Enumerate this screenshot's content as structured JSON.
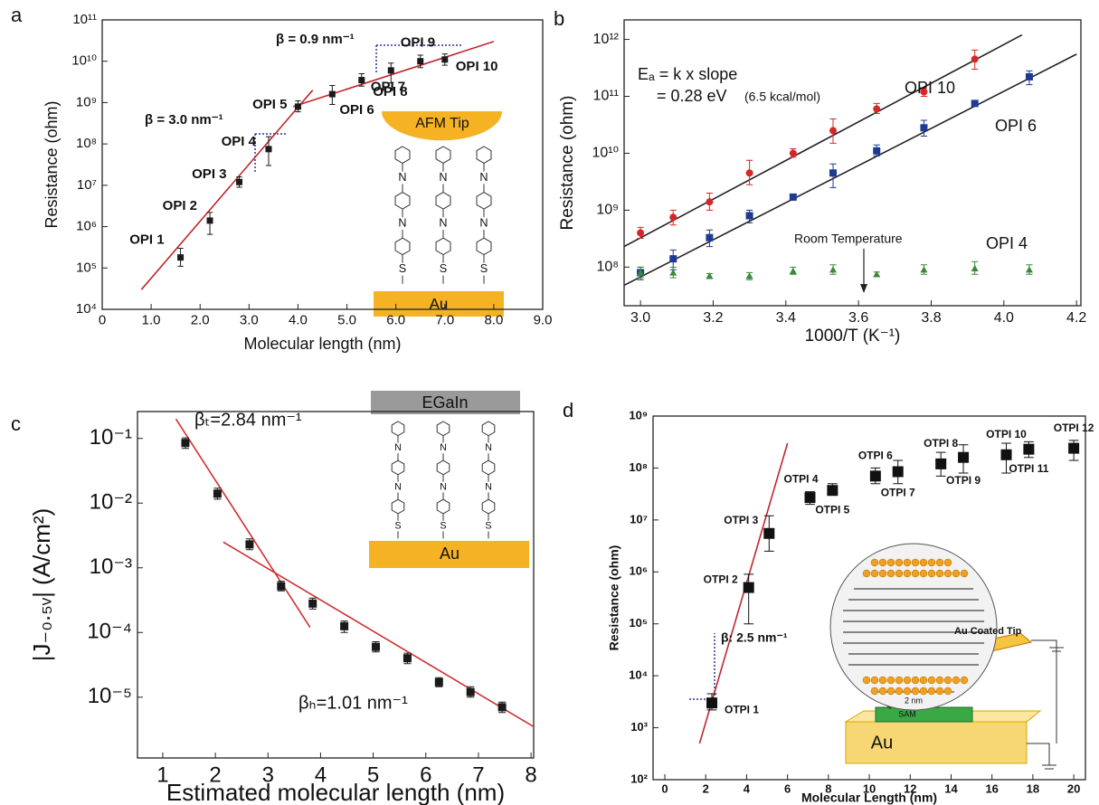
{
  "chart_data": [
    {
      "panel": "a",
      "type": "scatter",
      "x_label": "Molecular length (nm)",
      "y_label": "Resistance (ohm)",
      "log_y": true,
      "xlim": [
        0,
        9
      ],
      "ylim": [
        10000,
        100000000000
      ],
      "xticks": [
        0,
        {
          "value": 1,
          "label": "1.0"
        },
        {
          "value": 2,
          "label": "2.0"
        },
        {
          "value": 3,
          "label": "3.0"
        },
        {
          "value": 4,
          "label": "4.0"
        },
        {
          "value": 5,
          "label": "5.0"
        },
        {
          "value": 6,
          "label": "6.0"
        },
        {
          "value": 7,
          "label": "7.0"
        },
        {
          "value": 8,
          "label": "8.0"
        },
        {
          "value": 9,
          "label": "9.0"
        }
      ],
      "yticks": [
        {
          "value": 10000.0,
          "label": "10⁴"
        },
        {
          "value": 100000.0,
          "label": "10⁵"
        },
        {
          "value": 1000000.0,
          "label": "10⁶"
        },
        {
          "value": 10000000.0,
          "label": "10⁷"
        },
        {
          "value": 100000000.0,
          "label": "10⁸"
        },
        {
          "value": 1000000000.0,
          "label": "10⁹"
        },
        {
          "value": 10000000000.0,
          "label": "10¹⁰"
        },
        {
          "value": 100000000000.0,
          "label": "10¹¹"
        }
      ],
      "series": [
        {
          "color": "#1a1a1a",
          "marker": "square",
          "x": [
            1.6,
            2.2,
            2.8,
            3.4,
            4.0,
            4.7,
            5.3,
            5.9,
            6.5,
            7.0
          ],
          "values": [
            180000.0,
            1400000.0,
            12000000.0,
            75000000.0,
            800000000.0,
            1600000000.0,
            3500000000.0,
            6000000000.0,
            10000000000.0,
            11000000000.0
          ],
          "lower": [
            110000.0,
            650000.0,
            9000000.0,
            30000000.0,
            600000000.0,
            900000000.0,
            2500000000.0,
            3000000000.0,
            7000000000.0,
            8000000000.0
          ],
          "upper": [
            300000.0,
            2200000.0,
            16000000.0,
            150000000.0,
            1100000000.0,
            2600000000.0,
            5000000000.0,
            9000000000.0,
            14000000000.0,
            15000000000.0
          ],
          "point_labels": [
            "OPI 1",
            "OPI 2",
            "OPI 3",
            "OPI 4",
            "OPI 5",
            "OPI 6",
            "OPI 7",
            "OPI 8",
            "OPI 9",
            "OPI 10"
          ]
        }
      ],
      "fit_lines": [
        {
          "color": "#c0262d",
          "x": [
            0.8,
            4.3
          ],
          "y": [
            30000.0,
            2000000000.0
          ]
        },
        {
          "color": "#c0262d",
          "x": [
            3.9,
            8.0
          ],
          "y": [
            800000000.0,
            30000000000.0
          ]
        }
      ],
      "annotations": [
        "β = 3.0 nm⁻¹",
        "β = 0.9 nm⁻¹",
        "AFM Tip",
        "Au",
        "N",
        "S"
      ]
    },
    {
      "panel": "b",
      "type": "scatter",
      "x_label": "1000/T (K⁻¹)",
      "y_label": "Resistance (ohm)",
      "log_y": true,
      "xlim": [
        2.955,
        4.212
      ],
      "ylim": [
        21000000,
        2200000000000
      ],
      "xticks": [
        {
          "value": 3,
          "label": "3.0"
        },
        3.2,
        3.4,
        3.6,
        3.8,
        {
          "value": 4,
          "label": "4.0"
        },
        4.2
      ],
      "yticks": [
        {
          "value": 100000000.0,
          "label": "10⁸"
        },
        {
          "value": 1000000000.0,
          "label": "10⁹"
        },
        {
          "value": 10000000000.0,
          "label": "10¹⁰"
        },
        {
          "value": 100000000000.0,
          "label": "10¹¹"
        },
        {
          "value": 1000000000000.0,
          "label": "10¹²"
        }
      ],
      "series": [
        {
          "name": "OPI 10",
          "color": "#d62728",
          "marker": "circle",
          "x": [
            3.0,
            3.09,
            3.19,
            3.3,
            3.42,
            3.53,
            3.65,
            3.78,
            3.92
          ],
          "values": [
            400000000.0,
            750000000.0,
            1400000000.0,
            4500000000.0,
            10000000000.0,
            25000000000.0,
            60000000000.0,
            120000000000.0,
            450000000000.0
          ],
          "lower": [
            320000000.0,
            550000000.0,
            1000000000.0,
            2800000000.0,
            8500000000.0,
            15000000000.0,
            50000000000.0,
            100000000000.0,
            300000000000.0
          ],
          "upper": [
            500000000.0,
            1000000000.0,
            2000000000.0,
            7500000000.0,
            12000000000.0,
            40000000000.0,
            75000000000.0,
            140000000000.0,
            650000000000.0
          ]
        },
        {
          "name": "OPI 6",
          "color": "#1f3a93",
          "marker": "square",
          "x": [
            3.0,
            3.09,
            3.19,
            3.3,
            3.42,
            3.53,
            3.65,
            3.78,
            3.92,
            4.07
          ],
          "values": [
            80000000.0,
            140000000.0,
            330000000.0,
            800000000.0,
            1700000000.0,
            4500000000.0,
            11000000000.0,
            28000000000.0,
            75000000000.0,
            220000000000.0
          ],
          "lower": [
            60000000.0,
            90000000.0,
            230000000.0,
            600000000.0,
            1500000000.0,
            2500000000.0,
            9000000000.0,
            20000000000.0,
            70000000000.0,
            160000000000.0
          ],
          "upper": [
            100000000.0,
            200000000.0,
            450000000.0,
            1000000000.0,
            1900000000.0,
            6500000000.0,
            14000000000.0,
            38000000000.0,
            85000000000.0,
            280000000000.0
          ]
        },
        {
          "name": "OPI 4",
          "color": "#3a8a3a",
          "marker": "triangle",
          "x": [
            3.0,
            3.09,
            3.19,
            3.3,
            3.42,
            3.53,
            3.65,
            3.78,
            3.92,
            4.07
          ],
          "values": [
            80000000.0,
            80000000.0,
            70000000.0,
            70000000.0,
            85000000.0,
            90000000.0,
            75000000.0,
            90000000.0,
            95000000.0,
            90000000.0
          ],
          "lower": [
            65000000.0,
            65000000.0,
            63000000.0,
            60000000.0,
            75000000.0,
            75000000.0,
            68000000.0,
            75000000.0,
            75000000.0,
            75000000.0
          ],
          "upper": [
            100000000.0,
            100000000.0,
            77000000.0,
            80000000.0,
            100000000.0,
            110000000.0,
            82000000.0,
            110000000.0,
            125000000.0,
            110000000.0
          ]
        }
      ],
      "fit_lines": [
        {
          "color": "#222222",
          "x": [
            2.955,
            4.05
          ],
          "y": [
            230000000.0,
            1200000000000.0
          ]
        },
        {
          "color": "#222222",
          "x": [
            2.955,
            4.2
          ],
          "y": [
            48000000.0,
            550000000000.0
          ]
        }
      ],
      "annotations": [
        "Eₐ = k x slope",
        "= 0.28 eV",
        "(6.5 kcal/mol)",
        "Room Temperature"
      ]
    },
    {
      "panel": "c",
      "type": "scatter",
      "x_label": "Estimated molecular length (nm)",
      "y_label": "|J₋₀.₅ᵥ| (A/cm²)",
      "log_y": true,
      "xlim": [
        0.52,
        8.05
      ],
      "ylim": [
        1.15e-06,
        0.26
      ],
      "xticks": [
        1,
        2,
        3,
        4,
        5,
        6,
        7,
        8
      ],
      "yticks": [
        {
          "value": 1e-05,
          "label": "10⁻⁵"
        },
        {
          "value": 0.0001,
          "label": "10⁻⁴"
        },
        {
          "value": 0.001,
          "label": "10⁻³"
        },
        {
          "value": 0.01,
          "label": "10⁻²"
        },
        {
          "value": 0.1,
          "label": "10⁻¹"
        }
      ],
      "series": [
        {
          "color": "#1a1a1a",
          "marker": "square",
          "x": [
            1.43,
            2.04,
            2.65,
            3.25,
            3.85,
            4.45,
            5.05,
            5.65,
            6.25,
            6.85,
            7.45
          ],
          "values": [
            0.085,
            0.014,
            0.0023,
            0.00052,
            0.00028,
            0.000125,
            6e-05,
            4e-05,
            1.7e-05,
            1.2e-05,
            7e-06
          ],
          "lower": [
            0.07,
            0.0115,
            0.0019,
            0.00044,
            0.00023,
            0.0001,
            5e-05,
            3.3e-05,
            1.45e-05,
            1e-05,
            5.8e-06
          ],
          "upper": [
            0.102,
            0.017,
            0.0028,
            0.00062,
            0.00034,
            0.00015,
            7.2e-05,
            4.8e-05,
            2e-05,
            1.45e-05,
            8.4e-06
          ]
        }
      ],
      "fit_lines": [
        {
          "color": "#d03030",
          "x": [
            1.25,
            3.8
          ],
          "y": [
            0.2,
            0.00012
          ]
        },
        {
          "color": "#d03030",
          "x": [
            2.15,
            8.05
          ],
          "y": [
            0.0025,
            3.5e-06
          ]
        }
      ],
      "annotations": [
        "βₜ=2.84 nm⁻¹",
        "βₕ=1.01 nm⁻¹",
        "EGaIn",
        "Au",
        "N",
        "S"
      ]
    },
    {
      "panel": "d",
      "type": "scatter",
      "x_label": "Molecular Length (nm)",
      "y_label": "Resistance (ohm)",
      "log_y": true,
      "xlim": [
        -0.575,
        20.57
      ],
      "ylim": [
        100,
        1000000000
      ],
      "xticks": [
        0,
        2,
        4,
        6,
        8,
        10,
        12,
        14,
        16,
        18,
        20
      ],
      "yticks": [
        {
          "value": 100.0,
          "label": "10²"
        },
        {
          "value": 1000.0,
          "label": "10³"
        },
        {
          "value": 10000.0,
          "label": "10⁴"
        },
        {
          "value": 100000.0,
          "label": "10⁵"
        },
        {
          "value": 1000000.0,
          "label": "10⁶"
        },
        {
          "value": 10000000.0,
          "label": "10⁷"
        },
        {
          "value": 100000000.0,
          "label": "10⁸"
        },
        {
          "value": 1000000000.0,
          "label": "10⁹"
        }
      ],
      "series": [
        {
          "color": "#111111",
          "marker": "bigsquare",
          "x": [
            2.3,
            4.1,
            5.1,
            7.1,
            8.2,
            10.3,
            11.4,
            13.5,
            14.6,
            16.7,
            17.8,
            20.0
          ],
          "values": [
            3000.0,
            500000.0,
            5500000.0,
            27000000.0,
            37000000.0,
            70000000.0,
            85000000.0,
            120000000.0,
            160000000.0,
            180000000.0,
            230000000.0,
            240000000.0
          ],
          "lower": [
            2200.0,
            100000.0,
            2500000.0,
            20000000.0,
            30000000.0,
            50000000.0,
            50000000.0,
            70000000.0,
            80000000.0,
            80000000.0,
            160000000.0,
            140000000.0
          ],
          "upper": [
            4500.0,
            900000.0,
            12000000.0,
            35000000.0,
            50000000.0,
            100000000.0,
            140000000.0,
            200000000.0,
            280000000.0,
            300000000.0,
            320000000.0,
            340000000.0
          ],
          "point_labels": [
            "OTPI 1",
            "OTPI 2",
            "OTPI 3",
            "OTPI 4",
            "OTPI 5",
            "OTPI 6",
            "OTPI 7",
            "OTPI 8",
            "OTPI 9",
            "OTPI 10",
            "OTPI 11",
            "OTPI 12"
          ]
        }
      ],
      "fit_lines": [
        {
          "color": "#c0262d",
          "x": [
            1.7,
            6.0
          ],
          "y": [
            500,
            300000000
          ]
        }
      ],
      "annotations": [
        "β: 2.5 nm⁻¹",
        "2 nm",
        "Au Coated Tip",
        "SAM",
        "Au"
      ]
    }
  ]
}
